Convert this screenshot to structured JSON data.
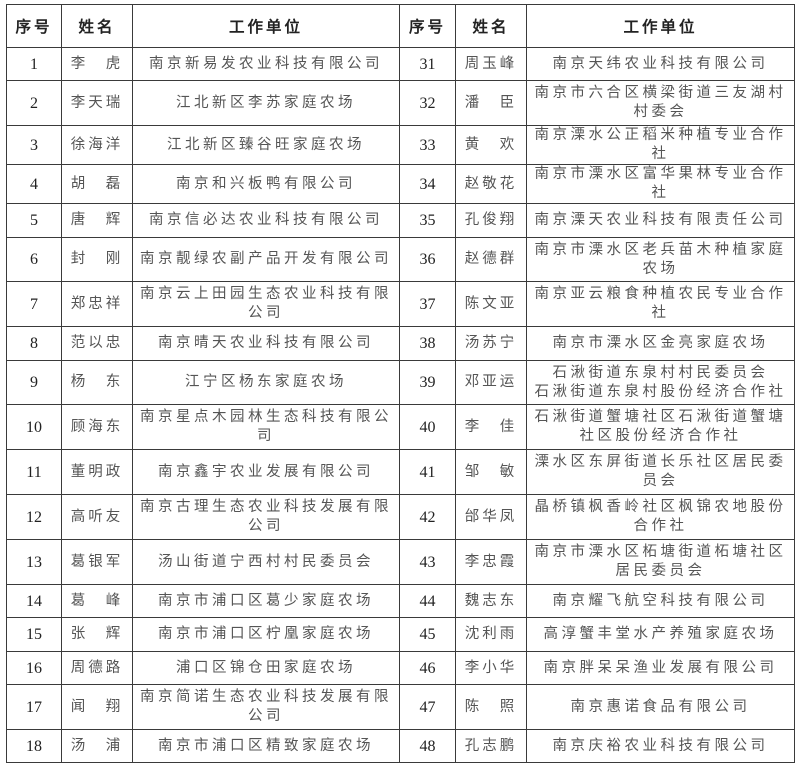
{
  "headers": [
    "序号",
    "姓名",
    "工作单位",
    "序号",
    "姓名",
    "工作单位"
  ],
  "rows": [
    {
      "left": {
        "no": "1",
        "name": "李　虎",
        "unit": "南京新易发农业科技有限公司"
      },
      "right": {
        "no": "31",
        "name": "周玉峰",
        "unit": "南京天纬农业科技有限公司"
      }
    },
    {
      "left": {
        "no": "2",
        "name": "李天瑞",
        "unit": "江北新区李苏家庭农场"
      },
      "right": {
        "no": "32",
        "name": "潘　臣",
        "unit": "南京市六合区横梁街道三友湖村村委会"
      }
    },
    {
      "left": {
        "no": "3",
        "name": "徐海洋",
        "unit": "江北新区臻谷旺家庭农场"
      },
      "right": {
        "no": "33",
        "name": "黄　欢",
        "unit": "南京溧水公正稻米种植专业合作社"
      }
    },
    {
      "left": {
        "no": "4",
        "name": "胡　磊",
        "unit": "南京和兴板鸭有限公司"
      },
      "right": {
        "no": "34",
        "name": "赵敬花",
        "unit": "南京市溧水区富华果林专业合作社"
      }
    },
    {
      "left": {
        "no": "5",
        "name": "唐　辉",
        "unit": "南京信必达农业科技有限公司"
      },
      "right": {
        "no": "35",
        "name": "孔俊翔",
        "unit": "南京溧天农业科技有限责任公司"
      }
    },
    {
      "left": {
        "no": "6",
        "name": "封　刚",
        "unit": "南京靓绿农副产品开发有限公司"
      },
      "right": {
        "no": "36",
        "name": "赵德群",
        "unit": "南京市溧水区老兵苗木种植家庭农场"
      }
    },
    {
      "left": {
        "no": "7",
        "name": "郑忠祥",
        "unit": "南京云上田园生态农业科技有限公司"
      },
      "right": {
        "no": "37",
        "name": "陈文亚",
        "unit": "南京亚云粮食种植农民专业合作社"
      }
    },
    {
      "left": {
        "no": "8",
        "name": "范以忠",
        "unit": "南京晴天农业科技有限公司"
      },
      "right": {
        "no": "38",
        "name": "汤苏宁",
        "unit": "南京市溧水区金亮家庭农场"
      }
    },
    {
      "left": {
        "no": "9",
        "name": "杨　东",
        "unit": "江宁区杨东家庭农场"
      },
      "right": {
        "no": "39",
        "name": "邓亚运",
        "unit": "石湫街道东泉村村民委员会\n石湫街道东泉村股份经济合作社"
      }
    },
    {
      "left": {
        "no": "10",
        "name": "顾海东",
        "unit": "南京星点木园林生态科技有限公司"
      },
      "right": {
        "no": "40",
        "name": "李　佳",
        "unit": "石湫街道蟹塘社区石湫街道蟹塘社区股份经济合作社"
      }
    },
    {
      "left": {
        "no": "11",
        "name": "董明政",
        "unit": "南京鑫宇农业发展有限公司"
      },
      "right": {
        "no": "41",
        "name": "邹　敏",
        "unit": "溧水区东屏街道长乐社区居民委员会"
      }
    },
    {
      "left": {
        "no": "12",
        "name": "高听友",
        "unit": "南京古理生态农业科技发展有限公司"
      },
      "right": {
        "no": "42",
        "name": "邰华凤",
        "unit": "晶桥镇枫香岭社区枫锦农地股份合作社"
      }
    },
    {
      "left": {
        "no": "13",
        "name": "葛银军",
        "unit": "汤山街道宁西村村民委员会"
      },
      "right": {
        "no": "43",
        "name": "李忠霞",
        "unit": "南京市溧水区柘塘街道柘塘社区居民委员会"
      }
    },
    {
      "left": {
        "no": "14",
        "name": "葛　峰",
        "unit": "南京市浦口区葛少家庭农场"
      },
      "right": {
        "no": "44",
        "name": "魏志东",
        "unit": "南京耀飞航空科技有限公司"
      }
    },
    {
      "left": {
        "no": "15",
        "name": "张　辉",
        "unit": "南京市浦口区柠凰家庭农场"
      },
      "right": {
        "no": "45",
        "name": "沈利雨",
        "unit": "高淳蟹丰堂水产养殖家庭农场"
      }
    },
    {
      "left": {
        "no": "16",
        "name": "周德路",
        "unit": "浦口区锦仓田家庭农场"
      },
      "right": {
        "no": "46",
        "name": "李小华",
        "unit": "南京胖呆呆渔业发展有限公司"
      }
    },
    {
      "left": {
        "no": "17",
        "name": "闻　翔",
        "unit": "南京简诺生态农业科技发展有限公司"
      },
      "right": {
        "no": "47",
        "name": "陈　照",
        "unit": "南京惠诺食品有限公司"
      }
    },
    {
      "left": {
        "no": "18",
        "name": "汤　浦",
        "unit": "南京市浦口区精致家庭农场"
      },
      "right": {
        "no": "48",
        "name": "孔志鹏",
        "unit": "南京庆裕农业科技有限公司"
      }
    }
  ]
}
